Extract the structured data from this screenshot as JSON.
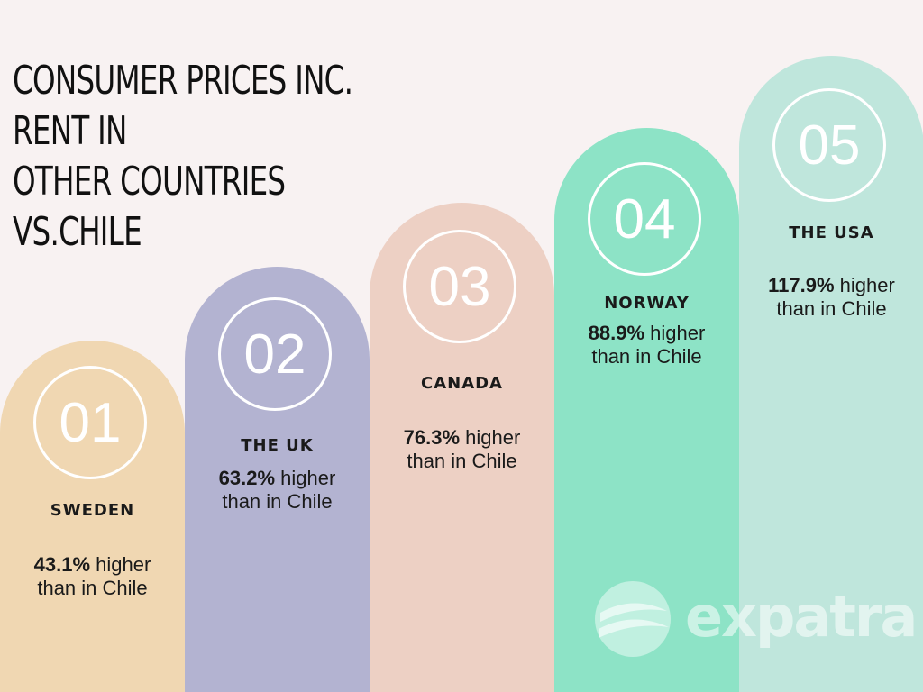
{
  "title_line1": "CONSUMER PRICES INC. RENT IN",
  "title_line2": "OTHER COUNTRIES VS.CHILE",
  "chart_data": {
    "type": "bar",
    "title": "CONSUMER PRICES INC. RENT IN OTHER COUNTRIES VS.CHILE",
    "categories": [
      "SWEDEN",
      "THE UK",
      "CANADA",
      "NORWAY",
      "THE USA"
    ],
    "values": [
      43.1,
      63.2,
      76.3,
      88.9,
      117.9
    ],
    "unit": "%",
    "items": [
      {
        "rank": "01",
        "country": "SWEDEN",
        "value_text": "43.1%",
        "suffix1": " higher",
        "suffix2": "than in Chile",
        "color": "#f0d7b2"
      },
      {
        "rank": "02",
        "country": "THE UK",
        "value_text": "63.2%",
        "suffix1": " higher",
        "suffix2": "than in Chile",
        "color": "#b3b3d1"
      },
      {
        "rank": "03",
        "country": "CANADA",
        "value_text": "76.3%",
        "suffix1": " higher",
        "suffix2": "than in Chile",
        "color": "#edd0c4"
      },
      {
        "rank": "04",
        "country": "NORWAY",
        "value_text": "88.9%",
        "suffix1": " higher",
        "suffix2": "than in Chile",
        "color": "#8de3c6"
      },
      {
        "rank": "05",
        "country": "THE USA",
        "value_text": "117.9%",
        "suffix1": " higher",
        "suffix2": "than in Chile",
        "color": "#bfe6dc"
      }
    ]
  },
  "logo": {
    "text": "expatra",
    "icon": "expatra-logo-icon"
  }
}
